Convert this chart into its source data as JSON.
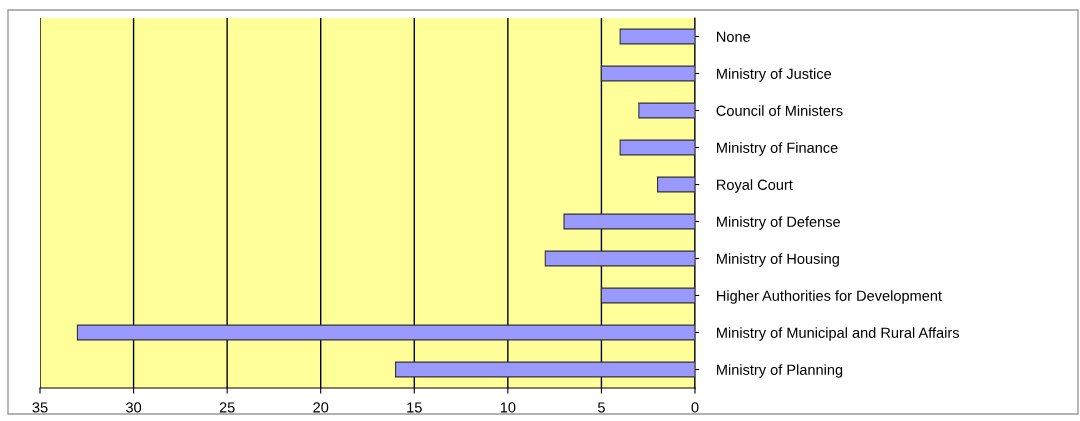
{
  "chart_data": {
    "type": "bar",
    "orientation": "horizontal",
    "categories": [
      "None",
      "Ministry of Justice",
      "Council of Ministers",
      "Ministry of Finance",
      "Royal Court",
      "Ministry of Defense",
      "Ministry of Housing",
      "Higher Authorities for Development",
      "Ministry of Municipal and Rural Affairs",
      "Ministry of Planning"
    ],
    "values": [
      4,
      5,
      3,
      4,
      2,
      7,
      8,
      5,
      33,
      16
    ],
    "color": "#9999ff",
    "xlim": [
      35,
      0
    ],
    "xticks": [
      35,
      30,
      25,
      20,
      15,
      10,
      5,
      0
    ],
    "grid": "x"
  }
}
